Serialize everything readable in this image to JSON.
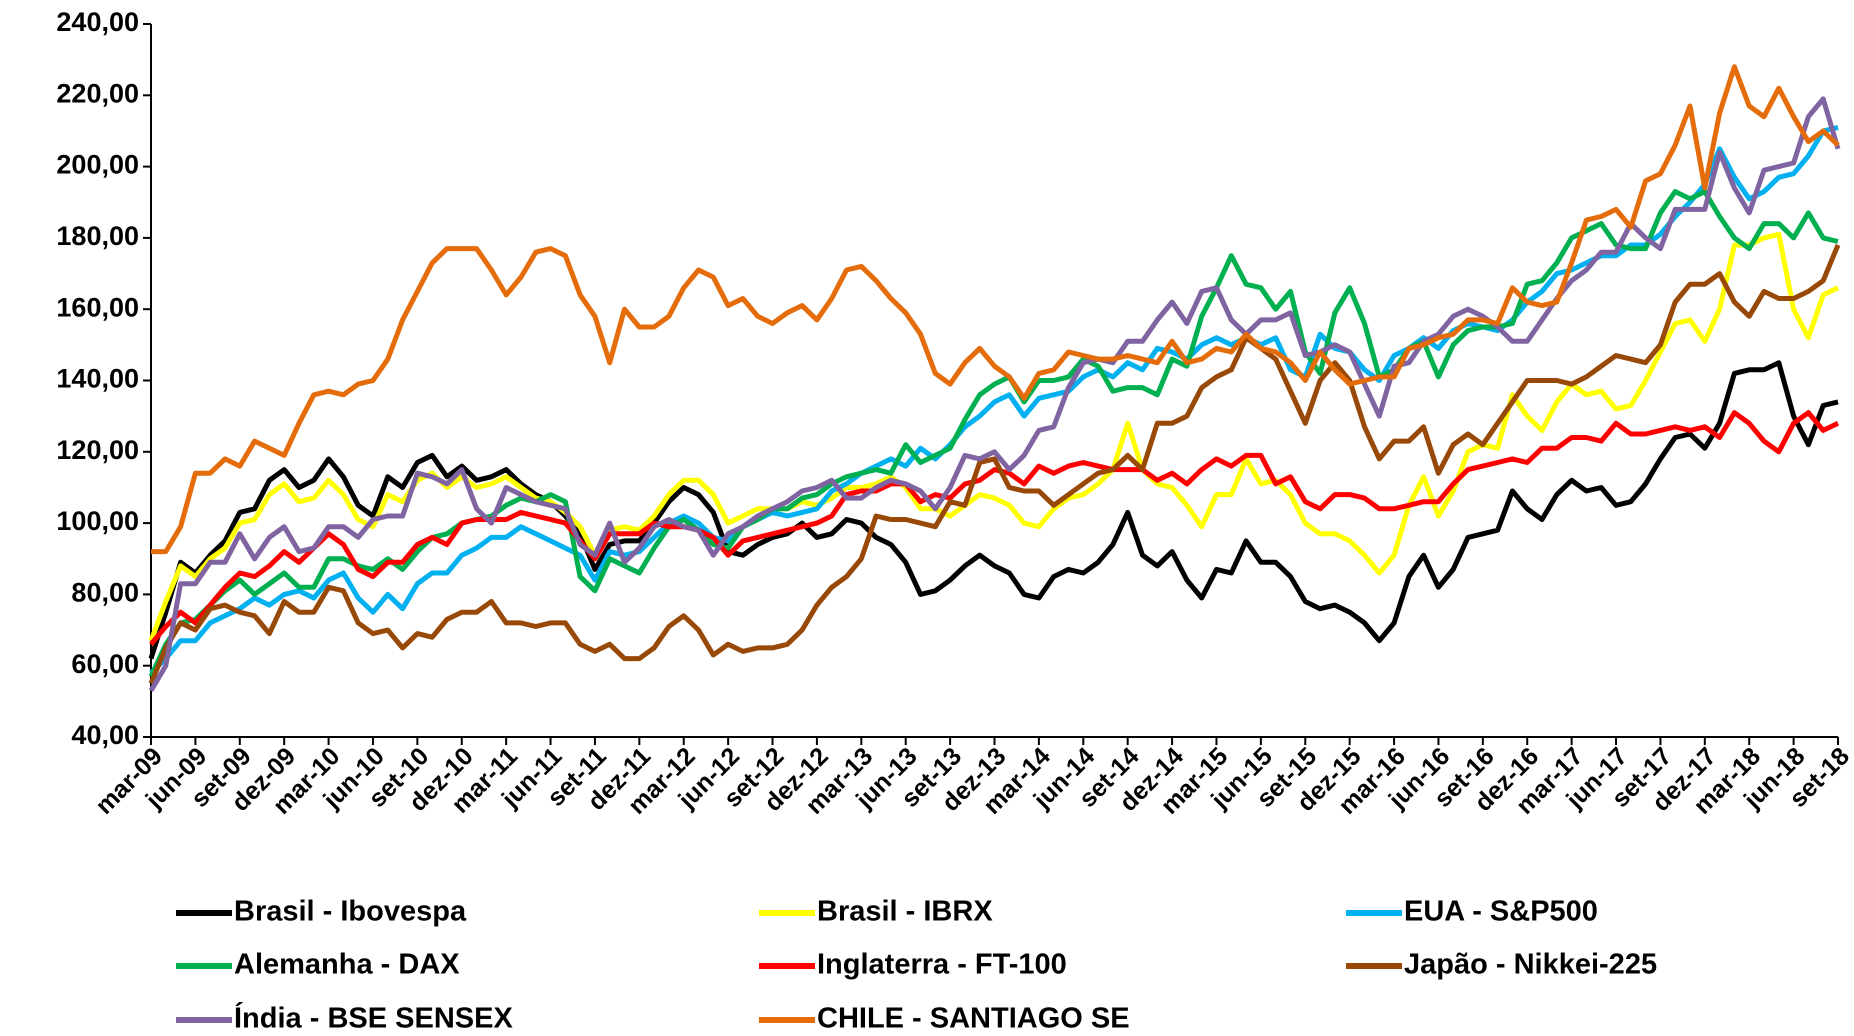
{
  "chart_data": {
    "type": "line",
    "categories": [
      "mar-09",
      null,
      null,
      "jun-09",
      null,
      null,
      "set-09",
      null,
      null,
      "dez-09",
      null,
      null,
      "mar-10",
      null,
      null,
      "jun-10",
      null,
      null,
      "set-10",
      null,
      null,
      "dez-10",
      null,
      null,
      "mar-11",
      null,
      null,
      "jun-11",
      null,
      null,
      "set-11",
      null,
      null,
      "dez-11",
      null,
      null,
      "mar-12",
      null,
      null,
      "jun-12",
      null,
      null,
      "set-12",
      null,
      null,
      "dez-12",
      null,
      null,
      "mar-13",
      null,
      null,
      "jun-13",
      null,
      null,
      "set-13",
      null,
      null,
      "dez-13",
      null,
      null,
      "mar-14",
      null,
      null,
      "jun-14",
      null,
      null,
      "set-14",
      null,
      null,
      "dez-14",
      null,
      null,
      "mar-15",
      null,
      null,
      "jun-15",
      null,
      null,
      "set-15",
      null,
      null,
      "dez-15",
      null,
      null,
      "mar-16",
      null,
      null,
      "jun-16",
      null,
      null,
      "set-16",
      null,
      null,
      "dez-16",
      null,
      null,
      "mar-17",
      null,
      null,
      "jun-17",
      null,
      null,
      "set-17",
      null,
      null,
      "dez-17",
      null,
      null,
      "mar-18",
      null,
      null,
      "jun-18",
      null,
      null,
      "set-18"
    ],
    "series": [
      {
        "name": "Brasil - Ibovespa",
        "color": "#000000",
        "values": [
          62,
          75,
          89,
          86,
          91,
          95,
          103,
          104,
          112,
          115,
          110,
          112,
          118,
          113,
          105,
          102,
          113,
          110,
          117,
          119,
          113,
          116,
          112,
          113,
          115,
          111,
          108,
          106,
          102,
          97,
          87,
          94,
          95,
          95,
          100,
          106,
          110,
          108,
          103,
          92,
          91,
          94,
          96,
          97,
          100,
          96,
          97,
          101,
          100,
          96,
          94,
          89,
          80,
          81,
          84,
          88,
          91,
          88,
          86,
          80,
          79,
          85,
          87,
          86,
          89,
          94,
          103,
          91,
          88,
          92,
          84,
          79,
          87,
          86,
          95,
          89,
          89,
          85,
          78,
          76,
          77,
          75,
          72,
          67,
          72,
          85,
          91,
          82,
          87,
          96,
          97,
          98,
          109,
          104,
          101,
          108,
          112,
          109,
          110,
          105,
          106,
          111,
          118,
          124,
          125,
          121,
          128,
          142,
          143,
          143,
          145,
          130,
          122,
          133,
          134
        ]
      },
      {
        "name": "Brasil - IBRX",
        "color": "#ffff00",
        "values": [
          67,
          78,
          88,
          85,
          90,
          93,
          100,
          101,
          108,
          111,
          106,
          107,
          112,
          108,
          101,
          99,
          108,
          106,
          112,
          114,
          110,
          113,
          110,
          111,
          113,
          110,
          107,
          106,
          103,
          99,
          91,
          98,
          99,
          98,
          102,
          108,
          112,
          112,
          108,
          100,
          102,
          104,
          104,
          104,
          106,
          105,
          107,
          110,
          110,
          111,
          113,
          110,
          104,
          104,
          102,
          105,
          108,
          107,
          105,
          100,
          99,
          104,
          107,
          108,
          111,
          115,
          128,
          115,
          111,
          110,
          105,
          99,
          108,
          108,
          118,
          111,
          112,
          108,
          100,
          97,
          97,
          95,
          91,
          86,
          91,
          105,
          113,
          102,
          109,
          120,
          122,
          121,
          136,
          130,
          126,
          134,
          139,
          136,
          137,
          132,
          133,
          140,
          148,
          156,
          157,
          151,
          160,
          178,
          178,
          180,
          181,
          160,
          152,
          164,
          166
        ]
      },
      {
        "name": "EUA - S&P500",
        "color": "#00b0f0",
        "values": [
          58,
          62,
          67,
          67,
          72,
          74,
          76,
          79,
          77,
          80,
          81,
          79,
          84,
          86,
          79,
          75,
          80,
          76,
          83,
          86,
          86,
          91,
          93,
          96,
          96,
          99,
          97,
          95,
          93,
          91,
          84,
          92,
          91,
          92,
          96,
          100,
          102,
          100,
          96,
          95,
          99,
          101,
          103,
          102,
          103,
          104,
          109,
          111,
          114,
          116,
          118,
          116,
          121,
          118,
          122,
          127,
          130,
          134,
          136,
          130,
          135,
          136,
          137,
          141,
          143,
          141,
          145,
          143,
          149,
          148,
          146,
          150,
          152,
          150,
          152,
          150,
          152,
          143,
          141,
          153,
          149,
          148,
          143,
          140,
          147,
          149,
          152,
          149,
          154,
          156,
          155,
          154,
          157,
          162,
          165,
          170,
          171,
          173,
          175,
          175,
          178,
          178,
          181,
          186,
          190,
          195,
          205,
          197,
          191,
          193,
          197,
          198,
          203,
          210,
          211
        ]
      },
      {
        "name": "Alemanha - DAX",
        "color": "#00b050",
        "values": [
          57,
          66,
          72,
          73,
          77,
          81,
          84,
          80,
          83,
          86,
          82,
          82,
          90,
          90,
          88,
          87,
          90,
          87,
          92,
          96,
          97,
          100,
          101,
          102,
          105,
          107,
          106,
          108,
          106,
          85,
          81,
          90,
          88,
          86,
          93,
          99,
          101,
          98,
          94,
          93,
          99,
          101,
          104,
          104,
          107,
          108,
          111,
          113,
          114,
          115,
          114,
          122,
          117,
          119,
          121,
          129,
          136,
          139,
          141,
          134,
          140,
          140,
          141,
          146,
          144,
          137,
          138,
          138,
          136,
          146,
          144,
          158,
          166,
          175,
          167,
          166,
          160,
          165,
          148,
          142,
          159,
          166,
          156,
          141,
          143,
          149,
          151,
          141,
          150,
          154,
          155,
          155,
          156,
          167,
          168,
          173,
          180,
          182,
          184,
          178,
          177,
          177,
          187,
          193,
          191,
          193,
          186,
          180,
          177,
          184,
          184,
          180,
          187,
          180,
          179
        ]
      },
      {
        "name": "Inglaterra - FT-100",
        "color": "#ff0000",
        "values": [
          66,
          71,
          75,
          72,
          77,
          82,
          86,
          85,
          88,
          92,
          89,
          93,
          97,
          94,
          87,
          85,
          89,
          89,
          94,
          96,
          94,
          100,
          101,
          101,
          101,
          103,
          102,
          101,
          100,
          95,
          90,
          97,
          97,
          97,
          100,
          99,
          99,
          98,
          96,
          91,
          95,
          96,
          97,
          98,
          99,
          100,
          102,
          108,
          109,
          109,
          111,
          111,
          106,
          108,
          107,
          111,
          112,
          115,
          114,
          111,
          116,
          114,
          116,
          117,
          116,
          115,
          115,
          115,
          112,
          114,
          111,
          115,
          118,
          116,
          119,
          119,
          111,
          113,
          106,
          104,
          108,
          108,
          107,
          104,
          104,
          105,
          106,
          106,
          111,
          115,
          116,
          117,
          118,
          117,
          121,
          121,
          124,
          124,
          123,
          128,
          125,
          125,
          126,
          127,
          126,
          127,
          124,
          131,
          128,
          123,
          120,
          128,
          131,
          126,
          128
        ]
      },
      {
        "name": "Japão - Nikkei-225",
        "color": "#984807",
        "values": [
          55,
          65,
          72,
          70,
          76,
          77,
          75,
          74,
          69,
          78,
          75,
          75,
          82,
          81,
          72,
          69,
          70,
          65,
          69,
          68,
          73,
          75,
          75,
          78,
          72,
          72,
          71,
          72,
          72,
          66,
          64,
          66,
          62,
          62,
          65,
          71,
          74,
          70,
          63,
          66,
          64,
          65,
          65,
          66,
          70,
          77,
          82,
          85,
          90,
          102,
          101,
          101,
          100,
          99,
          106,
          105,
          117,
          118,
          110,
          109,
          109,
          105,
          108,
          111,
          114,
          115,
          119,
          115,
          128,
          128,
          130,
          138,
          141,
          143,
          152,
          149,
          146,
          137,
          128,
          140,
          145,
          140,
          127,
          118,
          123,
          123,
          127,
          114,
          122,
          125,
          122,
          128,
          134,
          140,
          140,
          140,
          139,
          141,
          144,
          147,
          146,
          145,
          150,
          162,
          167,
          167,
          170,
          162,
          158,
          165,
          163,
          163,
          165,
          168,
          178
        ]
      },
      {
        "name": "Índia - BSE SENSEX",
        "color": "#8064a2",
        "values": [
          53,
          60,
          83,
          83,
          89,
          89,
          97,
          90,
          96,
          99,
          92,
          93,
          99,
          99,
          96,
          101,
          102,
          102,
          114,
          113,
          111,
          115,
          104,
          100,
          110,
          108,
          106,
          105,
          104,
          94,
          91,
          100,
          89,
          93,
          99,
          101,
          99,
          98,
          91,
          97,
          99,
          102,
          104,
          106,
          109,
          110,
          112,
          107,
          107,
          110,
          112,
          111,
          109,
          104,
          110,
          119,
          118,
          120,
          115,
          119,
          126,
          127,
          138,
          145,
          146,
          145,
          151,
          151,
          157,
          162,
          156,
          165,
          166,
          157,
          153,
          157,
          157,
          159,
          147,
          148,
          150,
          148,
          139,
          130,
          144,
          145,
          151,
          153,
          158,
          160,
          158,
          155,
          151,
          151,
          157,
          163,
          168,
          171,
          176,
          176,
          184,
          180,
          177,
          188,
          188,
          188,
          204,
          194,
          187,
          199,
          200,
          201,
          214,
          219,
          205
        ]
      },
      {
        "name": "CHILE - SANTIAGO SE",
        "color": "#e46c0a",
        "values": [
          92,
          92,
          99,
          114,
          114,
          118,
          116,
          123,
          121,
          119,
          128,
          136,
          137,
          136,
          139,
          140,
          146,
          157,
          165,
          173,
          177,
          177,
          177,
          171,
          164,
          169,
          176,
          177,
          175,
          164,
          158,
          145,
          160,
          155,
          155,
          158,
          166,
          171,
          169,
          161,
          163,
          158,
          156,
          159,
          161,
          157,
          163,
          171,
          172,
          168,
          163,
          159,
          153,
          142,
          139,
          145,
          149,
          144,
          141,
          135,
          142,
          143,
          148,
          147,
          146,
          146,
          147,
          146,
          145,
          151,
          145,
          146,
          149,
          148,
          153,
          149,
          148,
          145,
          140,
          148,
          143,
          139,
          140,
          141,
          141,
          149,
          150,
          152,
          153,
          157,
          157,
          156,
          166,
          162,
          161,
          162,
          173,
          185,
          186,
          188,
          183,
          196,
          198,
          206,
          217,
          194,
          215,
          228,
          217,
          214,
          222,
          214,
          207,
          210,
          206
        ]
      }
    ],
    "ylim": [
      40,
      240
    ],
    "yticks": [
      {
        "value": 40,
        "label": "40,00"
      },
      {
        "value": 60,
        "label": "60,00"
      },
      {
        "value": 80,
        "label": "80,00"
      },
      {
        "value": 100,
        "label": "100,00"
      },
      {
        "value": 120,
        "label": "120,00"
      },
      {
        "value": 140,
        "label": "140,00"
      },
      {
        "value": 160,
        "label": "160,00"
      },
      {
        "value": 180,
        "label": "180,00"
      },
      {
        "value": 200,
        "label": "200,00"
      },
      {
        "value": 220,
        "label": "220,00"
      },
      {
        "value": 240,
        "label": "240,00"
      }
    ],
    "grid": false,
    "legend": "bottom"
  }
}
